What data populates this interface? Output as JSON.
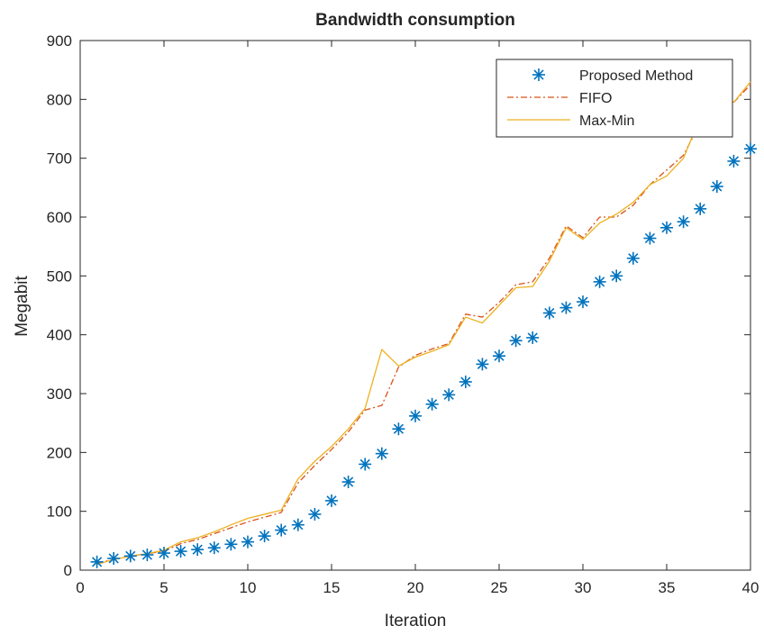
{
  "chart_data": {
    "type": "line",
    "title": "Bandwidth consumption",
    "xlabel": "Iteration",
    "ylabel": "Megabit",
    "xlim": [
      0,
      40
    ],
    "ylim": [
      0,
      900
    ],
    "xticks": [
      0,
      5,
      10,
      15,
      20,
      25,
      30,
      35,
      40
    ],
    "yticks": [
      0,
      100,
      200,
      300,
      400,
      500,
      600,
      700,
      800,
      900
    ],
    "grid": false,
    "legend_position": "top-right",
    "x": [
      1,
      2,
      3,
      4,
      5,
      6,
      7,
      8,
      9,
      10,
      11,
      12,
      13,
      14,
      15,
      16,
      17,
      18,
      19,
      20,
      21,
      22,
      23,
      24,
      25,
      26,
      27,
      28,
      29,
      30,
      31,
      32,
      33,
      34,
      35,
      36,
      37,
      38,
      39,
      40
    ],
    "series": [
      {
        "name": "Proposed Method",
        "style": "markers",
        "marker": "asterisk",
        "color": "#0072bd",
        "values": [
          14,
          20,
          24,
          26,
          29,
          32,
          35,
          38,
          44,
          48,
          58,
          68,
          77,
          95,
          118,
          150,
          180,
          198,
          240,
          262,
          282,
          298,
          320,
          350,
          364,
          390,
          395,
          437,
          446,
          456,
          490,
          500,
          530,
          564,
          582,
          592,
          614,
          652,
          695,
          716
        ]
      },
      {
        "name": "FIFO",
        "style": "dash-dot",
        "color": "#d95319",
        "values": [
          12,
          18,
          24,
          28,
          32,
          45,
          52,
          62,
          72,
          82,
          90,
          98,
          148,
          178,
          205,
          235,
          272,
          280,
          345,
          365,
          376,
          385,
          435,
          430,
          455,
          485,
          490,
          530,
          585,
          565,
          600,
          600,
          620,
          655,
          680,
          705,
          760,
          810,
          795,
          825
        ]
      },
      {
        "name": "Max-Min",
        "style": "solid",
        "color": "#edb120",
        "values": [
          10,
          18,
          24,
          28,
          34,
          48,
          55,
          65,
          77,
          88,
          95,
          102,
          155,
          185,
          210,
          240,
          275,
          375,
          347,
          362,
          372,
          383,
          430,
          420,
          450,
          480,
          482,
          525,
          582,
          562,
          590,
          605,
          625,
          655,
          670,
          700,
          770,
          815,
          795,
          830
        ]
      }
    ]
  }
}
